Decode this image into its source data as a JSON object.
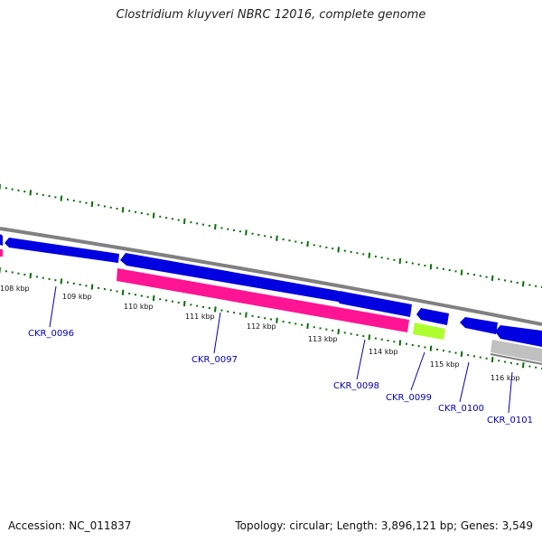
{
  "title": "Clostridium kluyveri NBRC 12016, complete genome",
  "accession_label": "Accession: NC_011837",
  "summary_label": "Topology: circular; Length: 3,896,121 bp; Genes: 3,549",
  "colors": {
    "backbone": "#808080",
    "tick_minor": "#006400",
    "tick_major": "#008000",
    "gene_cds": "#0000e0",
    "gene_pink": "#ff1493",
    "gene_lime": "#adff2f",
    "gene_grey": "#c0c0c0",
    "gene_label": "#0000b0"
  },
  "kbp_ticks": [
    "108 kbp",
    "109 kbp",
    "110 kbp",
    "111 kbp",
    "112 kbp",
    "113 kbp",
    "114 kbp",
    "115 kbp",
    "116 kbp"
  ],
  "genes": [
    {
      "locus": "CKR_0096"
    },
    {
      "locus": "CKR_0097"
    },
    {
      "locus": "CKR_0098"
    },
    {
      "locus": "CKR_0099"
    },
    {
      "locus": "CKR_0100"
    },
    {
      "locus": "CKR_0101"
    }
  ]
}
